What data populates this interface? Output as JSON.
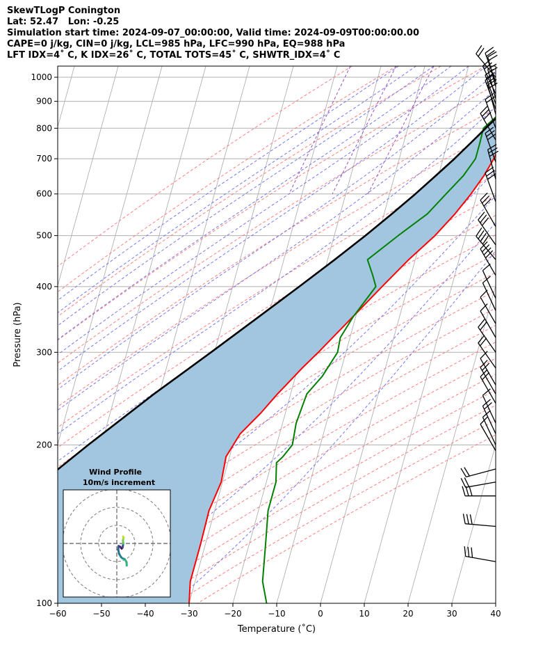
{
  "header": {
    "title": "SkewTLogP Conington",
    "location": "Lat: 52.47   Lon: -0.25",
    "times": "Simulation start time: 2024-09-07_00:00:00, Valid time: 2024-09-09T00:00:00.00",
    "indices1": "CAPE=0 j/kg, CIN=0 j/kg, LCL=985 hPa, LFC=990 hPa, EQ=988 hPa",
    "indices2": "LFT IDX=4˚ C, K IDX=26˚ C, TOTAL TOTS=45˚ C, SHWTR_IDX=4˚ C"
  },
  "chart_data": {
    "type": "line",
    "xlabel": "Temperature (˚C)",
    "ylabel": "Pressure (hPa)",
    "xlim": [
      -60,
      40
    ],
    "ylim": [
      1050,
      100
    ],
    "y_scale": "log",
    "x_ticks": [
      -60,
      -50,
      -40,
      -30,
      -20,
      -10,
      0,
      10,
      20,
      30,
      40
    ],
    "x_tick_labels": [
      "−60",
      "−50",
      "−40",
      "−30",
      "−20",
      "−10",
      "0",
      "10",
      "20",
      "30",
      "40"
    ],
    "y_ticks": [
      1000,
      900,
      800,
      700,
      600,
      500,
      400,
      300,
      200,
      100
    ],
    "y_tick_labels": [
      "1000",
      "900",
      "800",
      "700",
      "600",
      "500",
      "400",
      "300",
      "200",
      "100"
    ],
    "grid": true,
    "colors": {
      "temperature": "#ff0000",
      "dewpoint": "#008000",
      "parcel": "#000000",
      "fill": "#a3c6e0",
      "dry_adiabat": "#ff7070",
      "moist_adiabat": "#6f6ff2",
      "mixing_ratio": "#9b4fc4",
      "isotherm": "#b0b0b0"
    },
    "series": [
      {
        "id": "temperature",
        "p": [
          1000,
          975,
          950,
          925,
          900,
          850,
          800,
          750,
          700,
          650,
          600,
          550,
          500,
          450,
          400,
          350,
          300,
          280,
          260,
          250,
          230,
          210,
          190,
          170,
          150,
          130,
          110,
          100
        ],
        "temp": [
          16.5,
          16.8,
          16.0,
          14.8,
          14.0,
          13.3,
          12.8,
          12.2,
          11.6,
          10.4,
          8.6,
          6.2,
          3.0,
          -1.5,
          -5.9,
          -10.7,
          -16.3,
          -19.0,
          -21.6,
          -23.0,
          -25.6,
          -29.0,
          -30.8,
          -30.3,
          -31.3,
          -31.1,
          -31.1,
          -30.0
        ]
      },
      {
        "id": "dewpoint",
        "p": [
          1000,
          975,
          950,
          925,
          900,
          850,
          800,
          750,
          700,
          650,
          600,
          550,
          500,
          450,
          420,
          400,
          350,
          320,
          300,
          270,
          250,
          220,
          200,
          190,
          185,
          170,
          150,
          130,
          110,
          100
        ],
        "temp": [
          15.0,
          14.6,
          13.8,
          13.3,
          12.3,
          9.9,
          7.3,
          7.4,
          7.4,
          5.7,
          2.9,
          -0.1,
          -5.4,
          -10.9,
          -8.7,
          -7.3,
          -10.6,
          -12.2,
          -11.9,
          -13.9,
          -16.3,
          -16.9,
          -16.4,
          -17.8,
          -18.9,
          -17.8,
          -17.8,
          -16.3,
          -14.6,
          -12.3
        ]
      },
      {
        "id": "parcel",
        "p": [
          1000,
          985,
          950,
          900,
          850,
          800,
          750,
          700,
          650,
          600,
          550,
          500,
          450,
          400,
          350,
          300,
          250,
          200,
          150,
          120,
          100
        ],
        "temp": [
          16.0,
          15.6,
          14.3,
          12.3,
          10.2,
          7.8,
          5.3,
          2.6,
          -0.6,
          -4.1,
          -8.2,
          -12.9,
          -18.4,
          -24.8,
          -32.2,
          -40.8,
          -51.2,
          -63.0,
          -77.5,
          -86.5,
          -92.5
        ]
      }
    ],
    "wind_barbs": {
      "p": [
        120,
        140,
        160,
        170,
        180,
        195,
        200,
        210,
        220,
        240,
        250,
        260,
        280,
        300,
        320,
        340,
        360,
        380,
        420,
        450,
        480,
        520,
        580,
        640,
        690,
        760,
        800,
        850,
        870,
        890,
        910,
        930,
        960,
        980,
        1000
      ],
      "speed": [
        15,
        15,
        15,
        10,
        10,
        25,
        25,
        30,
        25,
        30,
        30,
        25,
        30,
        30,
        25,
        25,
        25,
        25,
        20,
        20,
        15,
        15,
        15,
        15,
        15,
        15,
        10,
        10,
        10,
        10,
        10,
        10,
        10,
        10,
        10
      ],
      "direction": [
        280,
        275,
        270,
        260,
        255,
        330,
        335,
        335,
        335,
        330,
        330,
        330,
        325,
        325,
        330,
        330,
        335,
        335,
        330,
        320,
        325,
        330,
        340,
        345,
        340,
        330,
        340,
        345,
        340,
        340,
        345,
        335,
        345,
        340,
        320
      ]
    },
    "hodograph": {
      "title": "Wind Profile",
      "subtitle": "10m/s increment",
      "rings_ms": [
        10,
        20,
        30
      ],
      "u": [
        5.5,
        5.4,
        4.8,
        4.2,
        3.2,
        2.4,
        1.3,
        0.8,
        1.0,
        1.8,
        2.7,
        3.2,
        3.6,
        3.4,
        3.6,
        3.8,
        3.5
      ],
      "v": [
        -12.2,
        -10.4,
        -9.3,
        -8.6,
        -8.3,
        -7.6,
        -5.8,
        -3.5,
        -1.4,
        -1.8,
        -2.8,
        -2.2,
        -0.1,
        1.6,
        2.8,
        3.3,
        3.8
      ]
    }
  }
}
